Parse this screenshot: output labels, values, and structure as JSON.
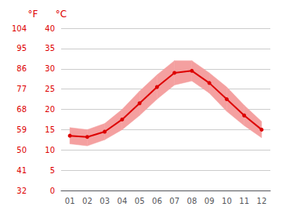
{
  "chart_data": {
    "type": "line",
    "categories": [
      "01",
      "02",
      "03",
      "04",
      "05",
      "06",
      "07",
      "08",
      "09",
      "10",
      "11",
      "12"
    ],
    "series": [
      {
        "type": "band",
        "color": "#f4a0a0",
        "low": [
          11.5,
          11.0,
          12.5,
          15.0,
          18.5,
          22.5,
          26.0,
          27.0,
          24.0,
          19.5,
          16.0,
          13.0
        ],
        "high": [
          15.5,
          15.0,
          16.5,
          20.0,
          24.5,
          28.5,
          32.0,
          32.0,
          29.0,
          25.5,
          21.0,
          17.0
        ]
      },
      {
        "type": "line",
        "color": "#dd0000",
        "marker": "circle",
        "values": [
          13.5,
          13.2,
          14.5,
          17.5,
          21.5,
          25.5,
          29.0,
          29.5,
          26.5,
          22.5,
          18.5,
          15.0
        ]
      }
    ],
    "ylabel": "°C",
    "y2label": "°F",
    "ylim": [
      0,
      40
    ],
    "yticks": [
      0,
      5,
      10,
      15,
      20,
      25,
      30,
      35,
      40
    ],
    "y2lim": [
      32,
      104
    ],
    "y2ticks": [
      32,
      41,
      50,
      59,
      68,
      77,
      86,
      95,
      104
    ],
    "grid": true
  }
}
